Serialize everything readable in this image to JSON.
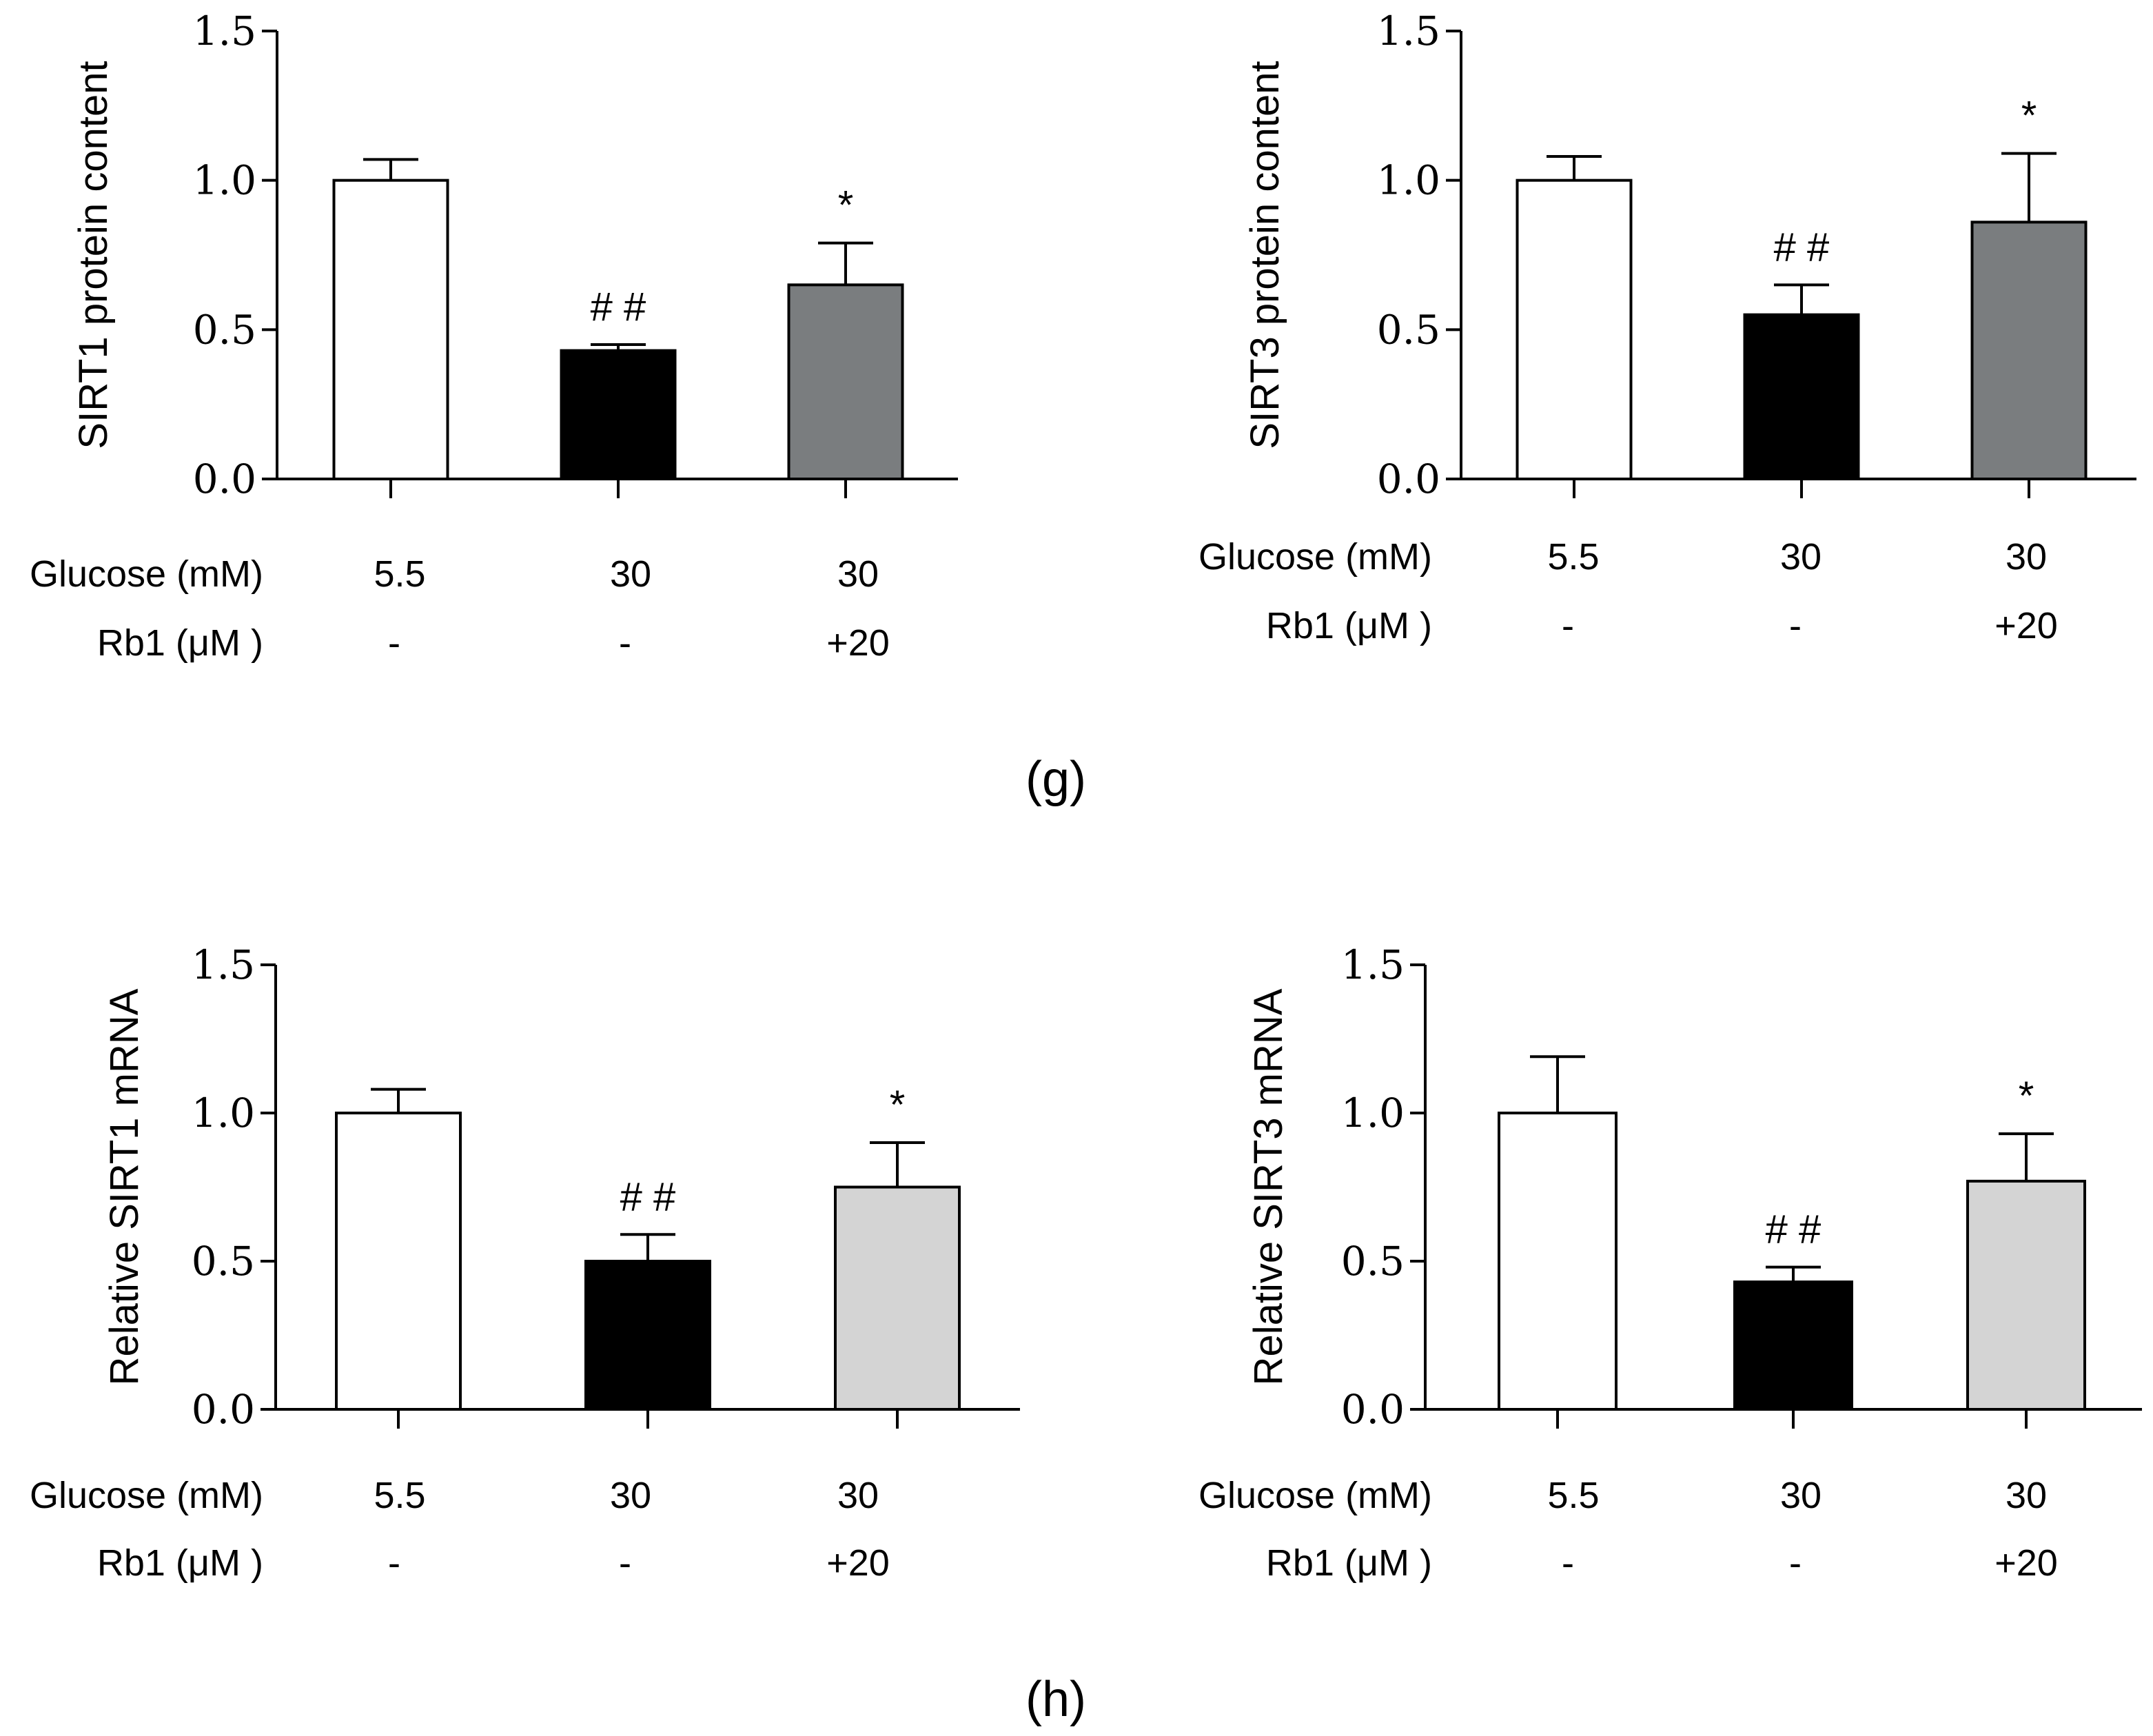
{
  "panel_labels": {
    "g": "(g)",
    "h": "(h)"
  },
  "chart_data": [
    {
      "type": "bar",
      "ylabel": "SIRT1 protein content",
      "ylim": [
        0,
        1.5
      ],
      "yticks": [
        "0.0",
        "0.5",
        "1.0",
        "1.5"
      ],
      "row_labels": [
        "Glucose (mM)",
        "Rb1 (μM )"
      ],
      "categories": [
        "5.5",
        "30",
        "30"
      ],
      "rb1": [
        "-",
        "-",
        "+20"
      ],
      "values": [
        1.0,
        0.43,
        0.65
      ],
      "errors": [
        0.07,
        0.02,
        0.14
      ],
      "annotations": [
        "",
        "# #",
        "*"
      ],
      "colors": [
        "#ffffff",
        "#000000",
        "#7a7d7f"
      ]
    },
    {
      "type": "bar",
      "ylabel": "SIRT3 protein content",
      "ylim": [
        0,
        1.5
      ],
      "yticks": [
        "0.0",
        "0.5",
        "1.0",
        "1.5"
      ],
      "row_labels": [
        "Glucose (mM)",
        "Rb1 (μM )"
      ],
      "categories": [
        "5.5",
        "30",
        "30"
      ],
      "rb1": [
        "-",
        "-",
        "+20"
      ],
      "values": [
        1.0,
        0.55,
        0.86
      ],
      "errors": [
        0.08,
        0.1,
        0.23
      ],
      "annotations": [
        "",
        "# #",
        "*"
      ],
      "colors": [
        "#ffffff",
        "#000000",
        "#7a7d7f"
      ]
    },
    {
      "type": "bar",
      "ylabel": "Relative SIRT1 mRNA",
      "ylim": [
        0,
        1.5
      ],
      "yticks": [
        "0.0",
        "0.5",
        "1.0",
        "1.5"
      ],
      "row_labels": [
        "Glucose (mM)",
        "Rb1 (μM )"
      ],
      "categories": [
        "5.5",
        "30",
        "30"
      ],
      "rb1": [
        "-",
        "-",
        "+20"
      ],
      "values": [
        1.0,
        0.5,
        0.75
      ],
      "errors": [
        0.08,
        0.09,
        0.15
      ],
      "annotations": [
        "",
        "# #",
        "*"
      ],
      "colors": [
        "#ffffff",
        "#000000",
        "#d4d4d4"
      ]
    },
    {
      "type": "bar",
      "ylabel": "Relative SIRT3 mRNA",
      "ylim": [
        0,
        1.5
      ],
      "yticks": [
        "0.0",
        "0.5",
        "1.0",
        "1.5"
      ],
      "row_labels": [
        "Glucose (mM)",
        "Rb1 (μM )"
      ],
      "categories": [
        "5.5",
        "30",
        "30"
      ],
      "rb1": [
        "-",
        "-",
        "+20"
      ],
      "values": [
        1.0,
        0.43,
        0.77
      ],
      "errors": [
        0.19,
        0.05,
        0.16
      ],
      "annotations": [
        "",
        "# #",
        "*"
      ],
      "colors": [
        "#ffffff",
        "#000000",
        "#d4d4d4"
      ]
    }
  ]
}
